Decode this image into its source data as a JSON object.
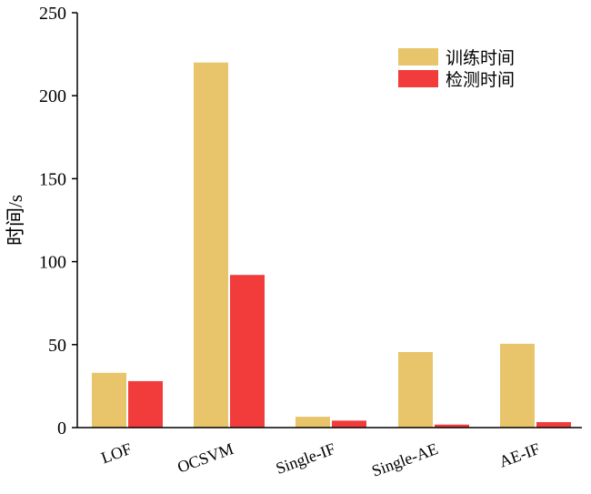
{
  "chart_data": {
    "type": "bar",
    "categories": [
      "LOF",
      "OCSVM",
      "Single-IF",
      "Single-AE",
      "AE-IF"
    ],
    "series": [
      {
        "name": "训练时间",
        "values": [
          33,
          220,
          6.5,
          45.5,
          50.5
        ],
        "color": "#E8C46A"
      },
      {
        "name": "检测时间",
        "values": [
          28,
          92,
          4.2,
          1.8,
          3.3
        ],
        "color": "#F23C3C"
      }
    ],
    "ylabel": "时间/s",
    "xlabel": "",
    "ylim": [
      0,
      250
    ],
    "yticks": [
      0,
      50,
      100,
      150,
      200,
      250
    ],
    "grid": false,
    "legend_position": "top-right"
  }
}
